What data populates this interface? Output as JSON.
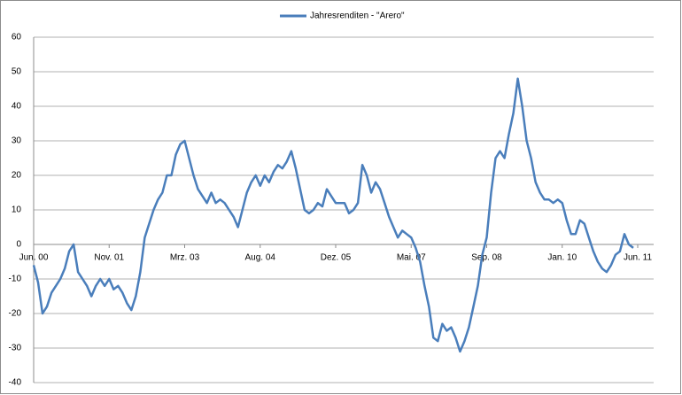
{
  "chart_data": {
    "type": "line",
    "legend_label": "Jahresrenditen - \"Arero\"",
    "categories": [
      "Jun. 00",
      null,
      null,
      null,
      null,
      null,
      null,
      null,
      null,
      null,
      null,
      null,
      null,
      null,
      null,
      null,
      null,
      "Nov. 01",
      null,
      null,
      null,
      null,
      null,
      null,
      null,
      null,
      null,
      null,
      null,
      null,
      null,
      null,
      null,
      null,
      "Mrz. 03",
      null,
      null,
      null,
      null,
      null,
      null,
      null,
      null,
      null,
      null,
      null,
      null,
      null,
      null,
      null,
      null,
      "Aug. 04",
      null,
      null,
      null,
      null,
      null,
      null,
      null,
      null,
      null,
      null,
      null,
      null,
      null,
      null,
      null,
      null,
      "Dez. 05",
      null,
      null,
      null,
      null,
      null,
      null,
      null,
      null,
      null,
      null,
      null,
      null,
      null,
      null,
      null,
      null,
      "Mai. 07",
      null,
      null,
      null,
      null,
      null,
      null,
      null,
      null,
      null,
      null,
      null,
      null,
      null,
      null,
      null,
      null,
      "Sep. 08",
      null,
      null,
      null,
      null,
      null,
      null,
      null,
      null,
      null,
      null,
      null,
      null,
      null,
      null,
      null,
      null,
      "Jan. 10",
      null,
      null,
      null,
      null,
      null,
      null,
      null,
      null,
      null,
      null,
      null,
      null,
      null,
      null,
      null,
      null,
      "Jun. 11"
    ],
    "series": [
      {
        "name": "Jahresrenditen - \"Arero\"",
        "color": "#4a7ebb",
        "values": [
          -6,
          -11,
          -20,
          -18,
          -14,
          -12,
          -10,
          -7,
          -2,
          0,
          -8,
          -10,
          -12,
          -15,
          -12,
          -10,
          -12,
          -10,
          -13,
          -12,
          -14,
          -17,
          -19,
          -15,
          -8,
          2,
          6,
          10,
          13,
          15,
          20,
          20,
          26,
          29,
          30,
          25,
          20,
          16,
          14,
          12,
          15,
          12,
          13,
          12,
          10,
          8,
          5,
          10,
          15,
          18,
          20,
          17,
          20,
          18,
          21,
          23,
          22,
          24,
          27,
          22,
          16,
          10,
          9,
          10,
          12,
          11,
          16,
          14,
          12,
          12,
          12,
          9,
          10,
          12,
          23,
          20,
          15,
          18,
          16,
          12,
          8,
          5,
          2,
          4,
          3,
          2,
          -1,
          -5,
          -12,
          -18,
          -27,
          -28,
          -23,
          -25,
          -24,
          -27,
          -31,
          -28,
          -24,
          -18,
          -12,
          -3,
          2,
          15,
          25,
          27,
          25,
          32,
          38,
          48,
          40,
          30,
          25,
          18,
          15,
          13,
          13,
          12,
          13,
          12,
          7,
          3,
          3,
          7,
          6,
          2,
          -2,
          -5,
          -7,
          -8,
          -6,
          -3,
          -2,
          3,
          0,
          -1,
          null
        ]
      }
    ],
    "ylim": [
      -40,
      60
    ],
    "yticks": [
      -40,
      -30,
      -20,
      -10,
      0,
      10,
      20,
      30,
      40,
      50,
      60
    ],
    "grid": true
  }
}
